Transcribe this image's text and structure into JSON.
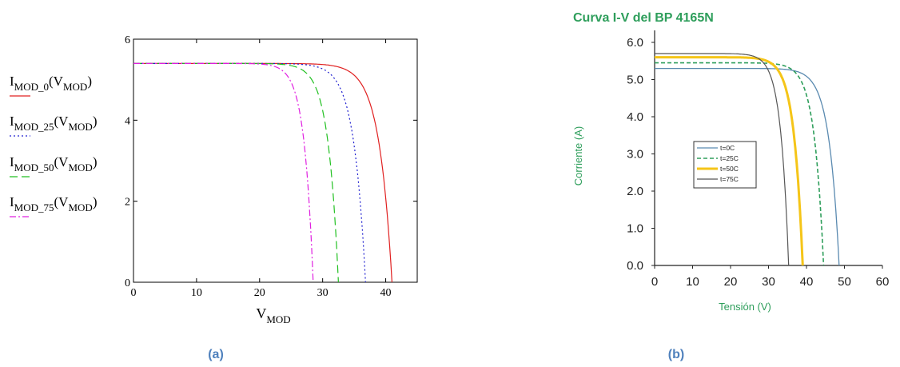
{
  "panel_labels": {
    "a": "(a)",
    "b": "(b)"
  },
  "colors": {
    "panel_label": "#4f81bd",
    "title_b": "#2e9e5b",
    "axis_label_b": "#2e9e5b"
  },
  "chart_data": [
    {
      "type": "line",
      "xlabel": "V",
      "xlabel_sub": "MOD",
      "xlim": [
        0,
        45
      ],
      "ylim": [
        0,
        6
      ],
      "xticks": [
        0,
        10,
        20,
        30,
        40
      ],
      "yticks": [
        0,
        2,
        4,
        6
      ],
      "legend_position": "left",
      "series": [
        {
          "name": "I",
          "name_sub": "MOD_0",
          "arg": "(V",
          "arg_sub": "MOD",
          "close": ")",
          "color": "#e02020",
          "dash": "",
          "isc": 5.4,
          "voc": 41.0,
          "k": 0.05
        },
        {
          "name": "I",
          "name_sub": "MOD_25",
          "arg": "(V",
          "arg_sub": "MOD",
          "close": ")",
          "color": "#2020d0",
          "dash": "2,3",
          "isc": 5.4,
          "voc": 36.8,
          "k": 0.05
        },
        {
          "name": "I",
          "name_sub": "MOD_50",
          "arg": "(V",
          "arg_sub": "MOD",
          "close": ")",
          "color": "#20c020",
          "dash": "10,5",
          "isc": 5.4,
          "voc": 32.5,
          "k": 0.05
        },
        {
          "name": "I",
          "name_sub": "MOD_75",
          "arg": "(V",
          "arg_sub": "MOD",
          "close": ")",
          "color": "#e020e0",
          "dash": "8,3,2,3",
          "isc": 5.4,
          "voc": 28.5,
          "k": 0.05
        }
      ]
    },
    {
      "type": "line",
      "title": "Curva I-V del BP 4165N",
      "xlabel": "Tensión (V)",
      "ylabel": "Corriente (A)",
      "xlim": [
        0,
        60
      ],
      "ylim": [
        0,
        6.5
      ],
      "xticks": [
        "0",
        "10",
        "20",
        "30",
        "40",
        "50",
        "60"
      ],
      "yticks": [
        "0.0",
        "1.0",
        "2.0",
        "3.0",
        "4.0",
        "5.0",
        "6.0"
      ],
      "legend_position": "center-left",
      "series": [
        {
          "name": "t=0C",
          "color": "#5a8ab0",
          "dash": "",
          "width": 1.3,
          "isc": 5.3,
          "voc": 48.6,
          "k": 0.055
        },
        {
          "name": "t=25C",
          "color": "#2e9e5b",
          "dash": "5,3",
          "width": 1.6,
          "isc": 5.45,
          "voc": 44.5,
          "k": 0.055
        },
        {
          "name": "t=50C",
          "color": "#f5c518",
          "dash": "",
          "width": 3.0,
          "isc": 5.6,
          "voc": 39.0,
          "k": 0.06
        },
        {
          "name": "t=75C",
          "color": "#555555",
          "dash": "",
          "width": 1.2,
          "isc": 5.7,
          "voc": 35.3,
          "k": 0.06
        }
      ]
    }
  ]
}
